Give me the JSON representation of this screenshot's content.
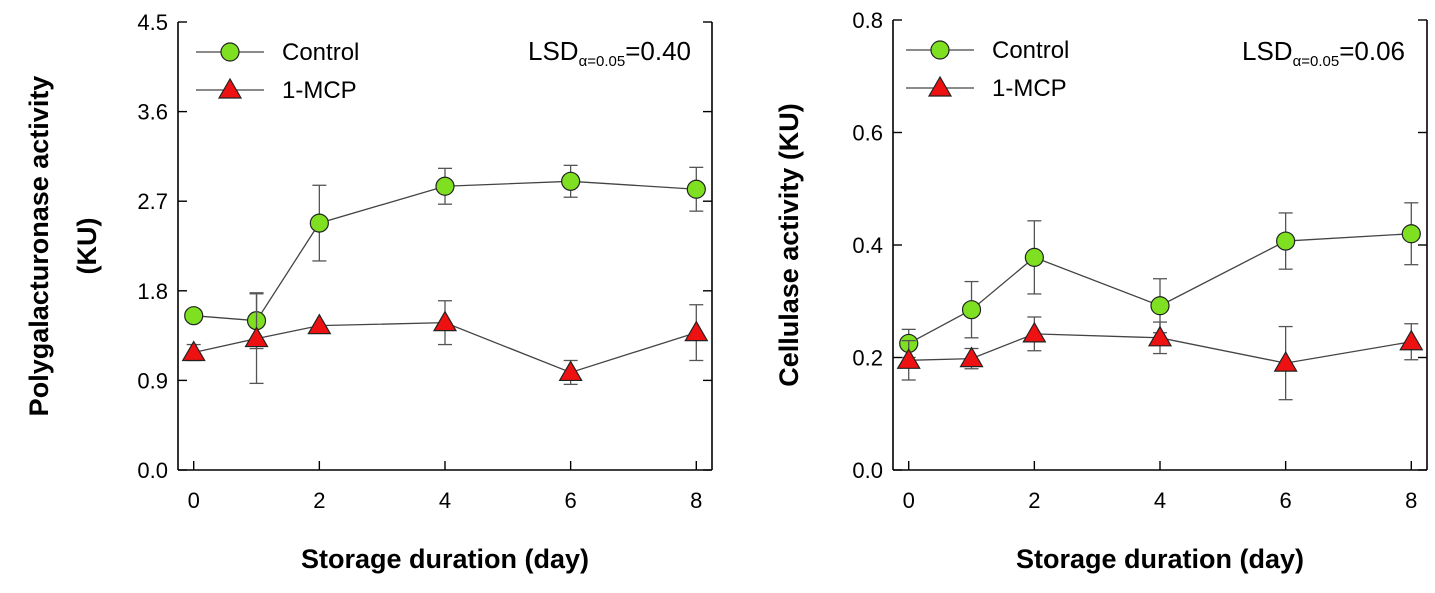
{
  "chart_data": [
    {
      "type": "line",
      "ylabel": [
        "Polygalacturonase activity",
        "(KU)"
      ],
      "xlabel": "Storage duration (day)",
      "x": [
        0,
        1,
        2,
        4,
        6,
        8
      ],
      "xticks": [
        "0",
        "2",
        "4",
        "6",
        "8"
      ],
      "ylim": [
        0,
        4.5
      ],
      "yticks": [
        "0.0",
        "0.9",
        "1.8",
        "2.7",
        "3.6",
        "4.5"
      ],
      "annotation": {
        "main": "LSD",
        "sub": "α=0.05",
        "value": "=0.40"
      },
      "series": [
        {
          "name": "Control",
          "marker": "circle",
          "color": "#7ee020",
          "values": [
            1.55,
            1.5,
            2.48,
            2.85,
            2.9,
            2.82
          ],
          "errors": [
            0.0,
            0.28,
            0.38,
            0.18,
            0.16,
            0.22
          ]
        },
        {
          "name": "1-MCP",
          "marker": "triangle",
          "color": "#ee1111",
          "values": [
            1.18,
            1.32,
            1.45,
            1.48,
            0.98,
            1.38
          ],
          "errors": [
            0.08,
            0.45,
            0.0,
            0.22,
            0.12,
            0.28
          ]
        }
      ]
    },
    {
      "type": "line",
      "ylabel": [
        "Cellulase activity (KU)"
      ],
      "xlabel": "Storage duration (day)",
      "x": [
        0,
        1,
        2,
        4,
        6,
        8
      ],
      "xticks": [
        "0",
        "2",
        "4",
        "6",
        "8"
      ],
      "ylim": [
        0,
        0.8
      ],
      "yticks": [
        "0.0",
        "0.2",
        "0.4",
        "0.6",
        "0.8"
      ],
      "annotation": {
        "main": "LSD",
        "sub": "α=0.05",
        "value": "=0.06"
      },
      "series": [
        {
          "name": "Control",
          "marker": "circle",
          "color": "#7ee020",
          "values": [
            0.225,
            0.285,
            0.378,
            0.292,
            0.407,
            0.42
          ],
          "errors": [
            0.025,
            0.05,
            0.065,
            0.048,
            0.05,
            0.055
          ]
        },
        {
          "name": "1-MCP",
          "marker": "triangle",
          "color": "#ee1111",
          "values": [
            0.195,
            0.198,
            0.242,
            0.235,
            0.19,
            0.228
          ],
          "errors": [
            0.035,
            0.018,
            0.03,
            0.028,
            0.065,
            0.032
          ]
        }
      ]
    }
  ]
}
